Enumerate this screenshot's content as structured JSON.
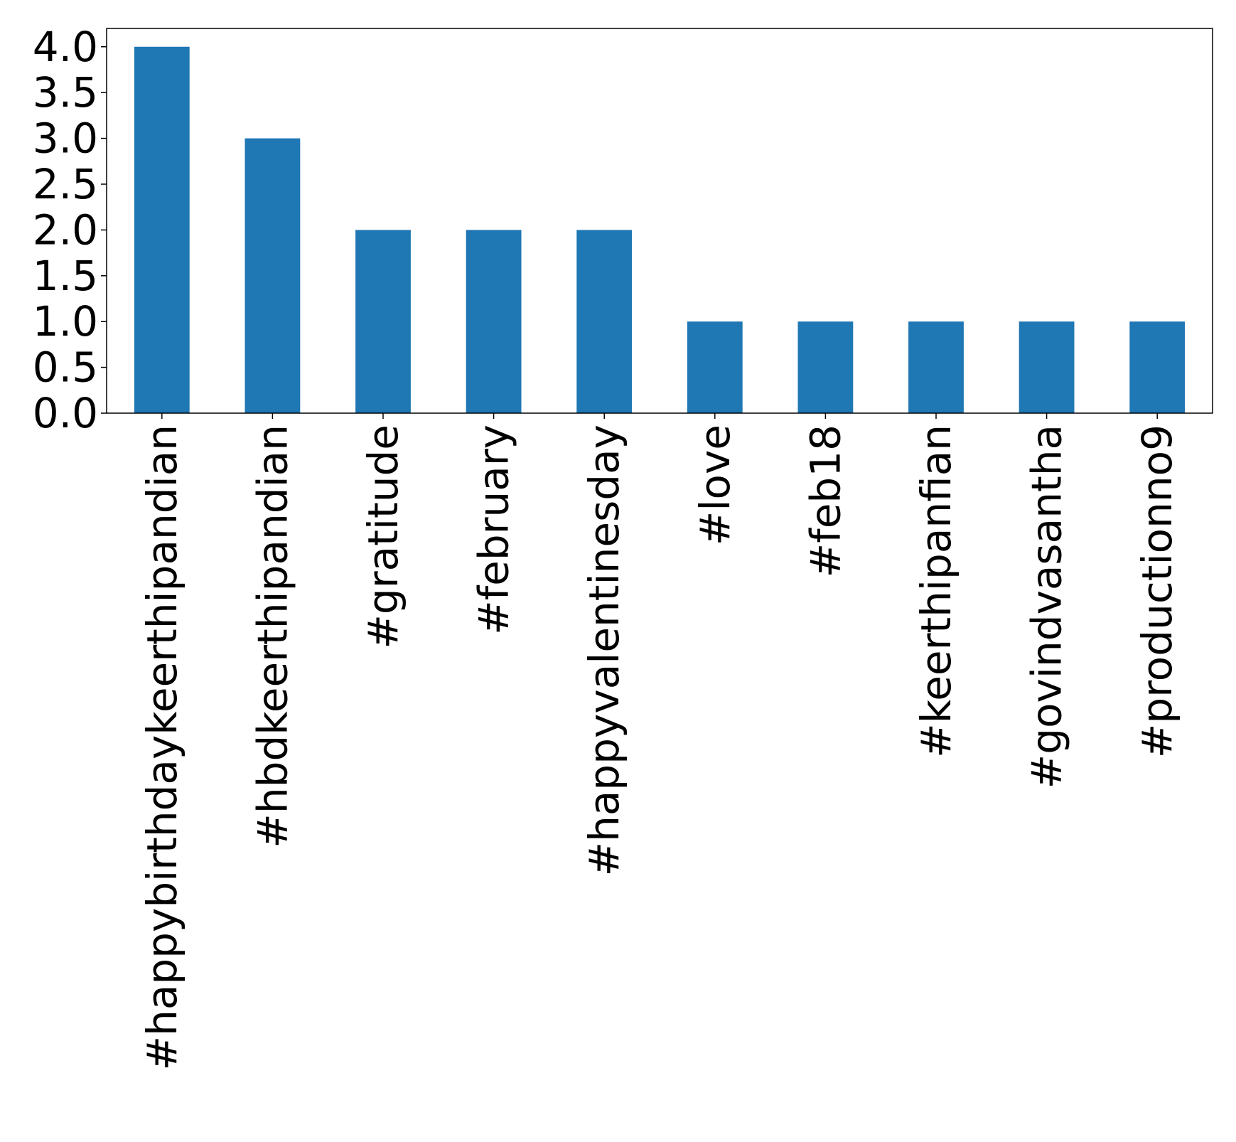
{
  "chart_data": {
    "type": "bar",
    "title": "",
    "xlabel": "",
    "ylabel": "",
    "categories": [
      "#happybirthdaykeerthipandian",
      "#hbdkeerthipandian",
      "#gratitude",
      "#february",
      "#happyvalentinesday",
      "#love",
      "#feb18",
      "#keerthipanfian",
      "#govindvasantha",
      "#productionno9"
    ],
    "values": [
      4,
      3,
      2,
      2,
      2,
      1,
      1,
      1,
      1,
      1
    ],
    "ylim": [
      0,
      4.2
    ],
    "yticks": [
      0.0,
      0.5,
      1.0,
      1.5,
      2.0,
      2.5,
      3.0,
      3.5,
      4.0
    ],
    "ytick_labels": [
      "0.0",
      "0.5",
      "1.0",
      "1.5",
      "2.0",
      "2.5",
      "3.0",
      "3.5",
      "4.0"
    ],
    "grid": false,
    "legend": "none",
    "bar_color": "#1f77b4"
  }
}
